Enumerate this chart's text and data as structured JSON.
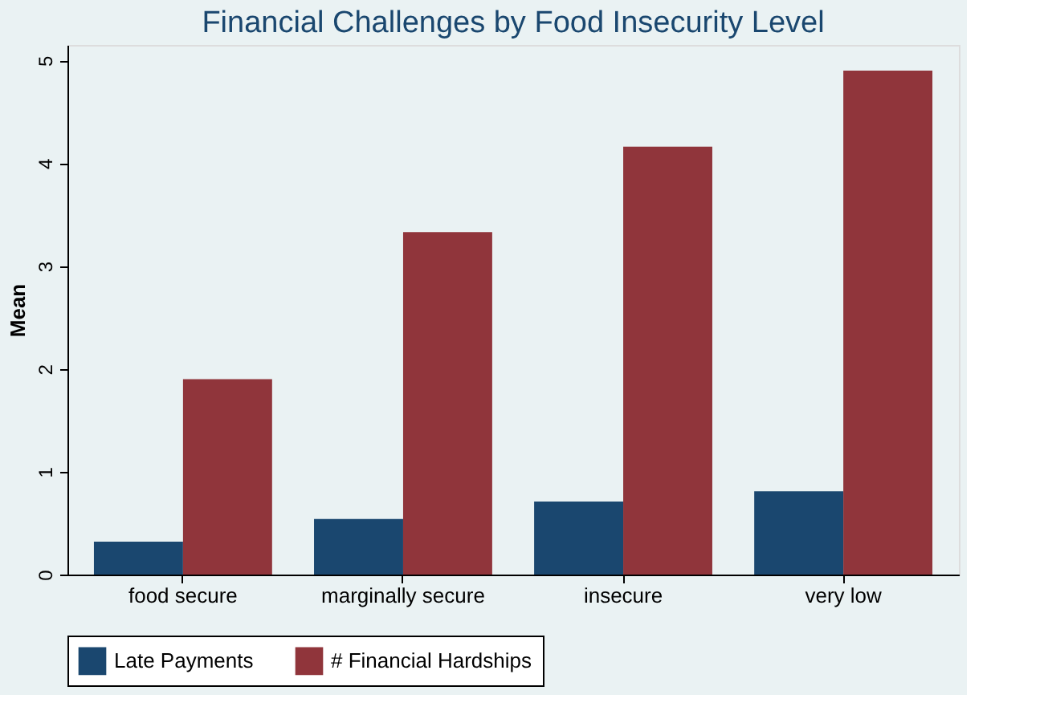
{
  "chart_data": {
    "type": "bar",
    "title": "Financial Challenges by Food Insecurity Level",
    "ylabel": "Mean",
    "categories": [
      "food secure",
      "marginally secure",
      "insecure",
      "very low"
    ],
    "series": [
      {
        "name": "Late Payments",
        "color": "#1a476f",
        "values": [
          0.32,
          0.54,
          0.71,
          0.81
        ]
      },
      {
        "name": "# Financial Hardships",
        "color": "#90353b",
        "values": [
          1.9,
          3.33,
          4.16,
          4.9
        ]
      }
    ],
    "ylim": [
      0,
      5.15
    ],
    "yticks": [
      0,
      1,
      2,
      3,
      4,
      5
    ],
    "grid": false,
    "legend": "bottom"
  }
}
